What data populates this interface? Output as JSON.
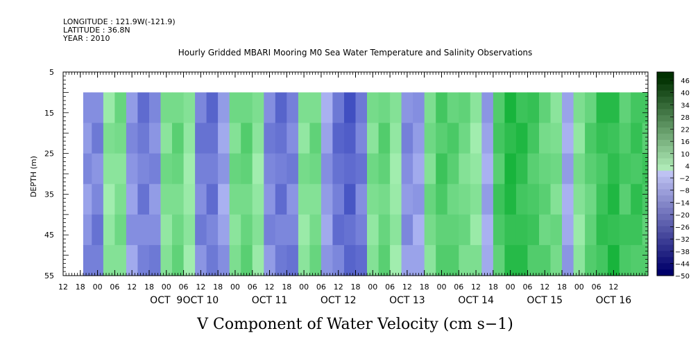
{
  "header": {
    "longitude": "LONGITUDE : 121.9W(-121.9)",
    "latitude": "LATITUDE : 36.8N",
    "year": "YEAR : 2010"
  },
  "chart_data": {
    "type": "heatmap",
    "title": "Hourly Gridded MBARI Mooring M0 Sea Water Temperature and Salinity Observations",
    "variable_label": "V Component of Water Velocity (cm s−1)",
    "ylabel": "DEPTH (m)",
    "ylim": [
      5,
      55
    ],
    "y_inverted": true,
    "y_ticks": [
      "5",
      "15",
      "25",
      "35",
      "45",
      "55"
    ],
    "data_depth_range": [
      10,
      55
    ],
    "x_hour_ticks": [
      "12",
      "18",
      "00",
      "06",
      "12",
      "18",
      "00",
      "06",
      "12",
      "18",
      "00",
      "06",
      "12",
      "18",
      "00",
      "06",
      "12",
      "18",
      "00",
      "06",
      "12",
      "18",
      "00",
      "06",
      "12",
      "18",
      "00",
      "06",
      "12",
      "18",
      "00",
      "06",
      "12"
    ],
    "x_day_labels": [
      {
        "label": "OCT  9",
        "hour": 36
      },
      {
        "label": "OCT 10",
        "hour": 48
      },
      {
        "label": "OCT 11",
        "hour": 72
      },
      {
        "label": "OCT 12",
        "hour": 96
      },
      {
        "label": "OCT 13",
        "hour": 120
      },
      {
        "label": "OCT 14",
        "hour": 144
      },
      {
        "label": "OCT 15",
        "hour": 168
      },
      {
        "label": "OCT 16",
        "hour": 192
      }
    ],
    "x_start": "OCT 8 12:00",
    "x_range_hours": [
      0,
      204
    ],
    "data_start_hour": 7,
    "colorbar_labels": [
      "46",
      "40",
      "34",
      "28",
      "22",
      "16",
      "10",
      "4",
      "−2",
      "−8",
      "−14",
      "−20",
      "−26",
      "−32",
      "−38",
      "−44",
      "−50"
    ],
    "colorbar_range": [
      -50,
      49
    ],
    "column_mean_velocity": [
      {
        "hour": 7,
        "value": -6
      },
      {
        "hour": 10,
        "value": -8
      },
      {
        "hour": 14,
        "value": 3
      },
      {
        "hour": 18,
        "value": 6
      },
      {
        "hour": 22,
        "value": -5
      },
      {
        "hour": 26,
        "value": -9
      },
      {
        "hour": 30,
        "value": -7
      },
      {
        "hour": 34,
        "value": 5
      },
      {
        "hour": 38,
        "value": 8
      },
      {
        "hour": 42,
        "value": 2
      },
      {
        "hour": 46,
        "value": -8
      },
      {
        "hour": 50,
        "value": -10
      },
      {
        "hour": 54,
        "value": -4
      },
      {
        "hour": 58,
        "value": 6
      },
      {
        "hour": 62,
        "value": 9
      },
      {
        "hour": 66,
        "value": 3
      },
      {
        "hour": 70,
        "value": -7
      },
      {
        "hour": 74,
        "value": -10
      },
      {
        "hour": 78,
        "value": -8
      },
      {
        "hour": 82,
        "value": 4
      },
      {
        "hour": 86,
        "value": 7
      },
      {
        "hour": 90,
        "value": -4
      },
      {
        "hour": 94,
        "value": -10
      },
      {
        "hour": 98,
        "value": -13
      },
      {
        "hour": 102,
        "value": -9
      },
      {
        "hour": 106,
        "value": 5
      },
      {
        "hour": 110,
        "value": 9
      },
      {
        "hour": 114,
        "value": 2
      },
      {
        "hour": 118,
        "value": -6
      },
      {
        "hour": 122,
        "value": -4
      },
      {
        "hour": 126,
        "value": 6
      },
      {
        "hour": 130,
        "value": 12
      },
      {
        "hour": 134,
        "value": 10
      },
      {
        "hour": 138,
        "value": 7
      },
      {
        "hour": 142,
        "value": 3
      },
      {
        "hour": 146,
        "value": -3
      },
      {
        "hour": 150,
        "value": 12
      },
      {
        "hour": 154,
        "value": 18
      },
      {
        "hour": 158,
        "value": 16
      },
      {
        "hour": 162,
        "value": 13
      },
      {
        "hour": 166,
        "value": 9
      },
      {
        "hour": 170,
        "value": 6
      },
      {
        "hour": 174,
        "value": -3
      },
      {
        "hour": 178,
        "value": 4
      },
      {
        "hour": 182,
        "value": 10
      },
      {
        "hour": 186,
        "value": 15
      },
      {
        "hour": 190,
        "value": 17
      },
      {
        "hour": 194,
        "value": 12
      },
      {
        "hour": 198,
        "value": 14
      },
      {
        "hour": 202,
        "value": 12
      }
    ]
  },
  "colors": {
    "negative_light": "#b0b8f4",
    "negative_dark": "#1c2cb0",
    "positive_light": "#a8f0b4",
    "positive_dark": "#18b43c",
    "colorbar_ends": [
      "#003000",
      "#00006a"
    ]
  }
}
